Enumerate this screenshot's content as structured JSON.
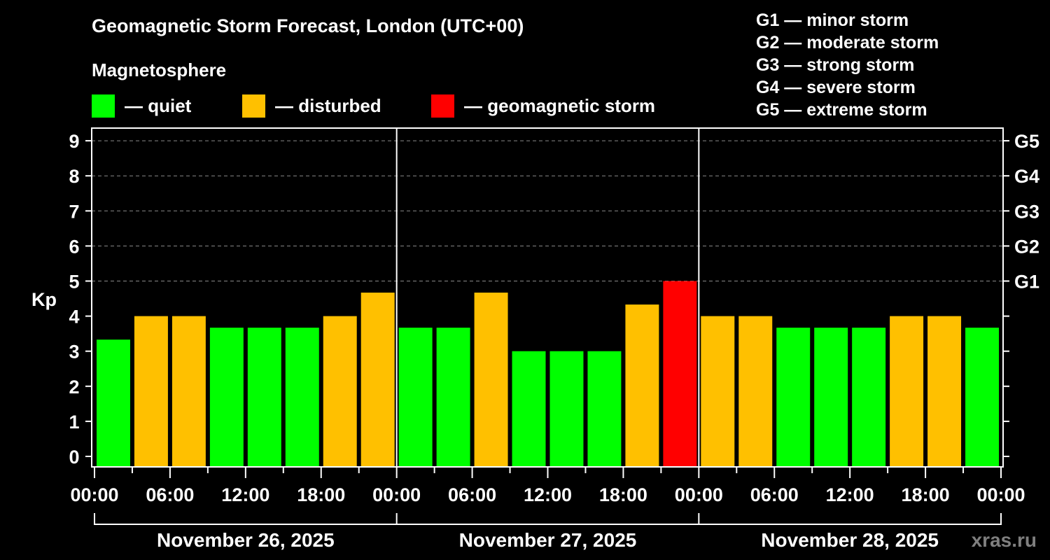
{
  "header": {
    "title": "Geomagnetic Storm Forecast, London (UTC+00)",
    "subtitle": "Magnetosphere"
  },
  "legend": [
    {
      "label": "— quiet",
      "color": "#00ff00"
    },
    {
      "label": "— disturbed",
      "color": "#ffc000"
    },
    {
      "label": "— geomagnetic storm",
      "color": "#ff0000"
    }
  ],
  "g_scale": [
    "G1 — minor storm",
    "G2 — moderate storm",
    "G3 — strong storm",
    "G4 — severe storm",
    "G5 — extreme storm"
  ],
  "watermark": "xras.ru",
  "chart_data": {
    "type": "bar",
    "title": "Geomagnetic Storm Forecast, London (UTC+00)",
    "subtitle": "Magnetosphere",
    "xlabel": "",
    "ylabel": "Kp",
    "ylim": [
      0,
      9
    ],
    "yticks": [
      0,
      1,
      2,
      3,
      4,
      5,
      6,
      7,
      8,
      9
    ],
    "right_axis_labels": [
      {
        "kp": 5,
        "label": "G1"
      },
      {
        "kp": 6,
        "label": "G2"
      },
      {
        "kp": 7,
        "label": "G3"
      },
      {
        "kp": 8,
        "label": "G4"
      },
      {
        "kp": 9,
        "label": "G5"
      }
    ],
    "grid": "dashed horizontal at Kp 5-9",
    "x_tick_labels": [
      "00:00",
      "06:00",
      "12:00",
      "18:00",
      "00:00",
      "06:00",
      "12:00",
      "18:00",
      "00:00",
      "06:00",
      "12:00",
      "18:00",
      "00:00"
    ],
    "days": [
      "November 26, 2025",
      "November 27, 2025",
      "November 28, 2025"
    ],
    "categories": [
      "Nov 26 00-03",
      "Nov 26 03-06",
      "Nov 26 06-09",
      "Nov 26 09-12",
      "Nov 26 12-15",
      "Nov 26 15-18",
      "Nov 26 18-21",
      "Nov 26 21-24",
      "Nov 27 00-03",
      "Nov 27 03-06",
      "Nov 27 06-09",
      "Nov 27 09-12",
      "Nov 27 12-15",
      "Nov 27 15-18",
      "Nov 27 18-21",
      "Nov 27 21-24",
      "Nov 28 00-03",
      "Nov 28 03-06",
      "Nov 28 06-09",
      "Nov 28 09-12",
      "Nov 28 12-15",
      "Nov 28 15-18",
      "Nov 28 18-21",
      "Nov 28 21-24"
    ],
    "values": [
      3.33,
      4,
      4,
      3.67,
      3.67,
      3.67,
      4,
      4.67,
      3.67,
      3.67,
      4.67,
      3,
      3,
      3,
      4.33,
      5,
      4,
      4,
      3.67,
      3.67,
      3.67,
      4,
      4,
      3.67
    ],
    "status": [
      "quiet",
      "disturbed",
      "disturbed",
      "quiet",
      "quiet",
      "quiet",
      "disturbed",
      "disturbed",
      "quiet",
      "quiet",
      "disturbed",
      "quiet",
      "quiet",
      "quiet",
      "disturbed",
      "storm",
      "disturbed",
      "disturbed",
      "quiet",
      "quiet",
      "quiet",
      "disturbed",
      "disturbed",
      "quiet"
    ],
    "colors": {
      "quiet": "#00ff00",
      "disturbed": "#ffc000",
      "storm": "#ff0000"
    }
  }
}
